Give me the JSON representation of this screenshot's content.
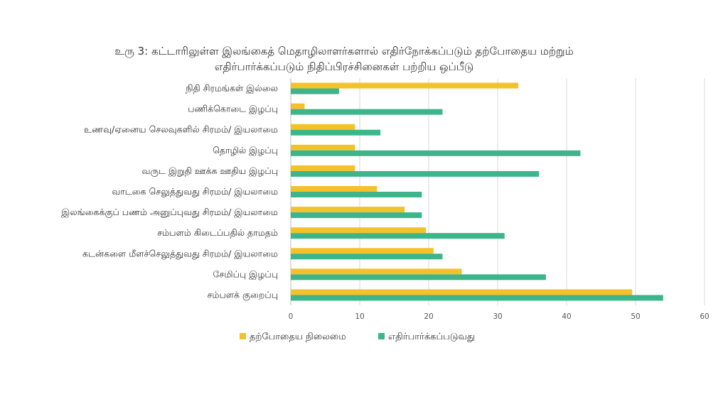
{
  "chart_data": {
    "type": "bar",
    "orientation": "horizontal",
    "title": [
      "உரு 3: கட்டாரிலுள்ள இலங்கைத் மெதாழிலாளர்களால் எதிர்நோக்கப்படும் தற்போதைய மற்றும்",
      "எதிர்பார்க்கப்படும் நிதிப்பிரச்சினைகள் பற்றிய ஒப்பீடு"
    ],
    "categories": [
      "நிதி சிரமங்கள் இல்லை",
      "பணிக்கொடை இழப்பு",
      "உணவு/ஏனைய செலவுகளில் சிரமம்/ இயலாமை",
      "தொழில் இழப்பு",
      "வருட இறுதி ஊக்க ஊதிய இழப்பு",
      "வாடகை செலுத்துவது சிரமம்/ இயலாமை",
      "இலங்கைக்குப் பணம் அனுப்புவது சிரமம்/ இயலாமை",
      "சம்பளம் கிடைப்பதில் தாமதம்",
      "கடன்களை மீளச்செலுத்துவது சிரமம்/ இயலாமை",
      "சேமிப்பு இழப்பு",
      "சம்பளக் குறைப்பு"
    ],
    "series": [
      {
        "name": "தற்போதைய நிலைமை",
        "color": "#f5c12b",
        "values": [
          33,
          2,
          9.3,
          9.3,
          9.3,
          12.5,
          16.5,
          19.6,
          20.7,
          24.8,
          49.5
        ]
      },
      {
        "name": "எதிர்பார்க்கப்படுவது",
        "color": "#3cb58a",
        "values": [
          7,
          22,
          13,
          42,
          36,
          19,
          19,
          31,
          22,
          37,
          54
        ]
      }
    ],
    "xlim": [
      0,
      60
    ],
    "xticks": [
      0,
      10,
      20,
      30,
      40,
      50,
      60
    ],
    "grid": true,
    "legend_position": "bottom"
  }
}
